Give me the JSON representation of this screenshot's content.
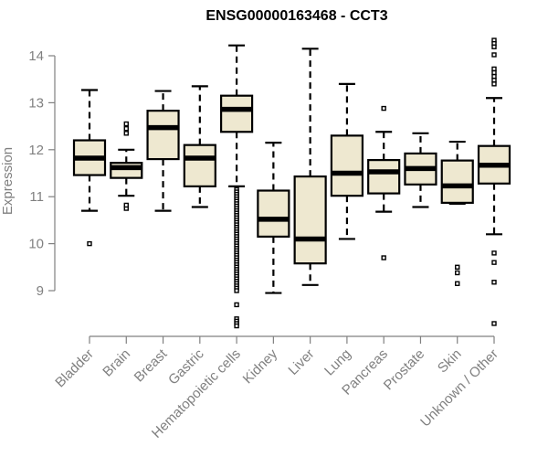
{
  "chart_data": {
    "type": "boxplot",
    "title": "ENSG00000163468 - CCT3",
    "xlabel": "",
    "ylabel": "Expression",
    "ylim": [
      8.2,
      14.4
    ],
    "yticks": [
      9,
      10,
      11,
      12,
      13,
      14
    ],
    "grid": false,
    "legend": "none",
    "box_fill": "#EEE8D0",
    "box_stroke": "#000000",
    "categories": [
      "Bladder",
      "Brain",
      "Breast",
      "Gastric",
      "Hematopoietic cells",
      "Kidney",
      "Liver",
      "Lung",
      "Pancreas",
      "Prostate",
      "Skin",
      "Unknown / Other"
    ],
    "boxes": [
      {
        "name": "Bladder",
        "whisker_low": 10.7,
        "q1": 11.46,
        "median": 11.82,
        "q3": 12.2,
        "whisker_high": 13.27,
        "outliers": [
          10.0
        ]
      },
      {
        "name": "Brain",
        "whisker_low": 11.02,
        "q1": 11.4,
        "median": 11.62,
        "q3": 11.72,
        "whisker_high": 12.0,
        "outliers": [
          12.35,
          12.45,
          12.55,
          10.75,
          10.82
        ]
      },
      {
        "name": "Breast",
        "whisker_low": 10.7,
        "q1": 11.8,
        "median": 12.47,
        "q3": 12.83,
        "whisker_high": 13.25,
        "outliers": []
      },
      {
        "name": "Gastric",
        "whisker_low": 10.78,
        "q1": 11.22,
        "median": 11.82,
        "q3": 12.1,
        "whisker_high": 13.35,
        "outliers": []
      },
      {
        "name": "Hematopoietic cells",
        "whisker_low": 11.22,
        "q1": 12.38,
        "median": 12.86,
        "q3": 13.15,
        "whisker_high": 14.22,
        "outliers": [
          11.15,
          11.1,
          11.05,
          11.0,
          10.95,
          10.9,
          10.85,
          10.8,
          10.75,
          10.7,
          10.65,
          10.6,
          10.55,
          10.5,
          10.45,
          10.4,
          10.35,
          10.3,
          10.25,
          10.2,
          10.15,
          10.1,
          10.05,
          10.0,
          9.95,
          9.9,
          9.85,
          9.8,
          9.75,
          9.7,
          9.65,
          9.6,
          9.55,
          9.5,
          9.45,
          9.4,
          9.35,
          9.3,
          9.25,
          9.2,
          9.15,
          9.1,
          9.05,
          9.0,
          8.7,
          8.4,
          8.35,
          8.3,
          8.25
        ]
      },
      {
        "name": "Kidney",
        "whisker_low": 8.95,
        "q1": 10.15,
        "median": 10.52,
        "q3": 11.13,
        "whisker_high": 12.15,
        "outliers": []
      },
      {
        "name": "Liver",
        "whisker_low": 9.12,
        "q1": 9.58,
        "median": 10.1,
        "q3": 11.43,
        "whisker_high": 14.15,
        "outliers": []
      },
      {
        "name": "Lung",
        "whisker_low": 10.1,
        "q1": 11.02,
        "median": 11.5,
        "q3": 12.3,
        "whisker_high": 13.4,
        "outliers": []
      },
      {
        "name": "Pancreas",
        "whisker_low": 10.68,
        "q1": 11.07,
        "median": 11.53,
        "q3": 11.78,
        "whisker_high": 12.38,
        "outliers": [
          12.88,
          9.7
        ]
      },
      {
        "name": "Prostate",
        "whisker_low": 10.78,
        "q1": 11.26,
        "median": 11.6,
        "q3": 11.92,
        "whisker_high": 12.35,
        "outliers": []
      },
      {
        "name": "Skin",
        "whisker_low": 10.85,
        "q1": 10.87,
        "median": 11.23,
        "q3": 11.77,
        "whisker_high": 12.17,
        "outliers": [
          9.5,
          9.38,
          9.15
        ]
      },
      {
        "name": "Unknown / Other",
        "whisker_low": 10.2,
        "q1": 11.28,
        "median": 11.67,
        "q3": 12.08,
        "whisker_high": 13.1,
        "outliers": [
          14.33,
          14.26,
          14.19,
          14.02,
          13.72,
          13.64,
          13.56,
          13.48,
          13.4,
          9.8,
          9.6,
          9.18,
          8.3
        ]
      }
    ]
  }
}
